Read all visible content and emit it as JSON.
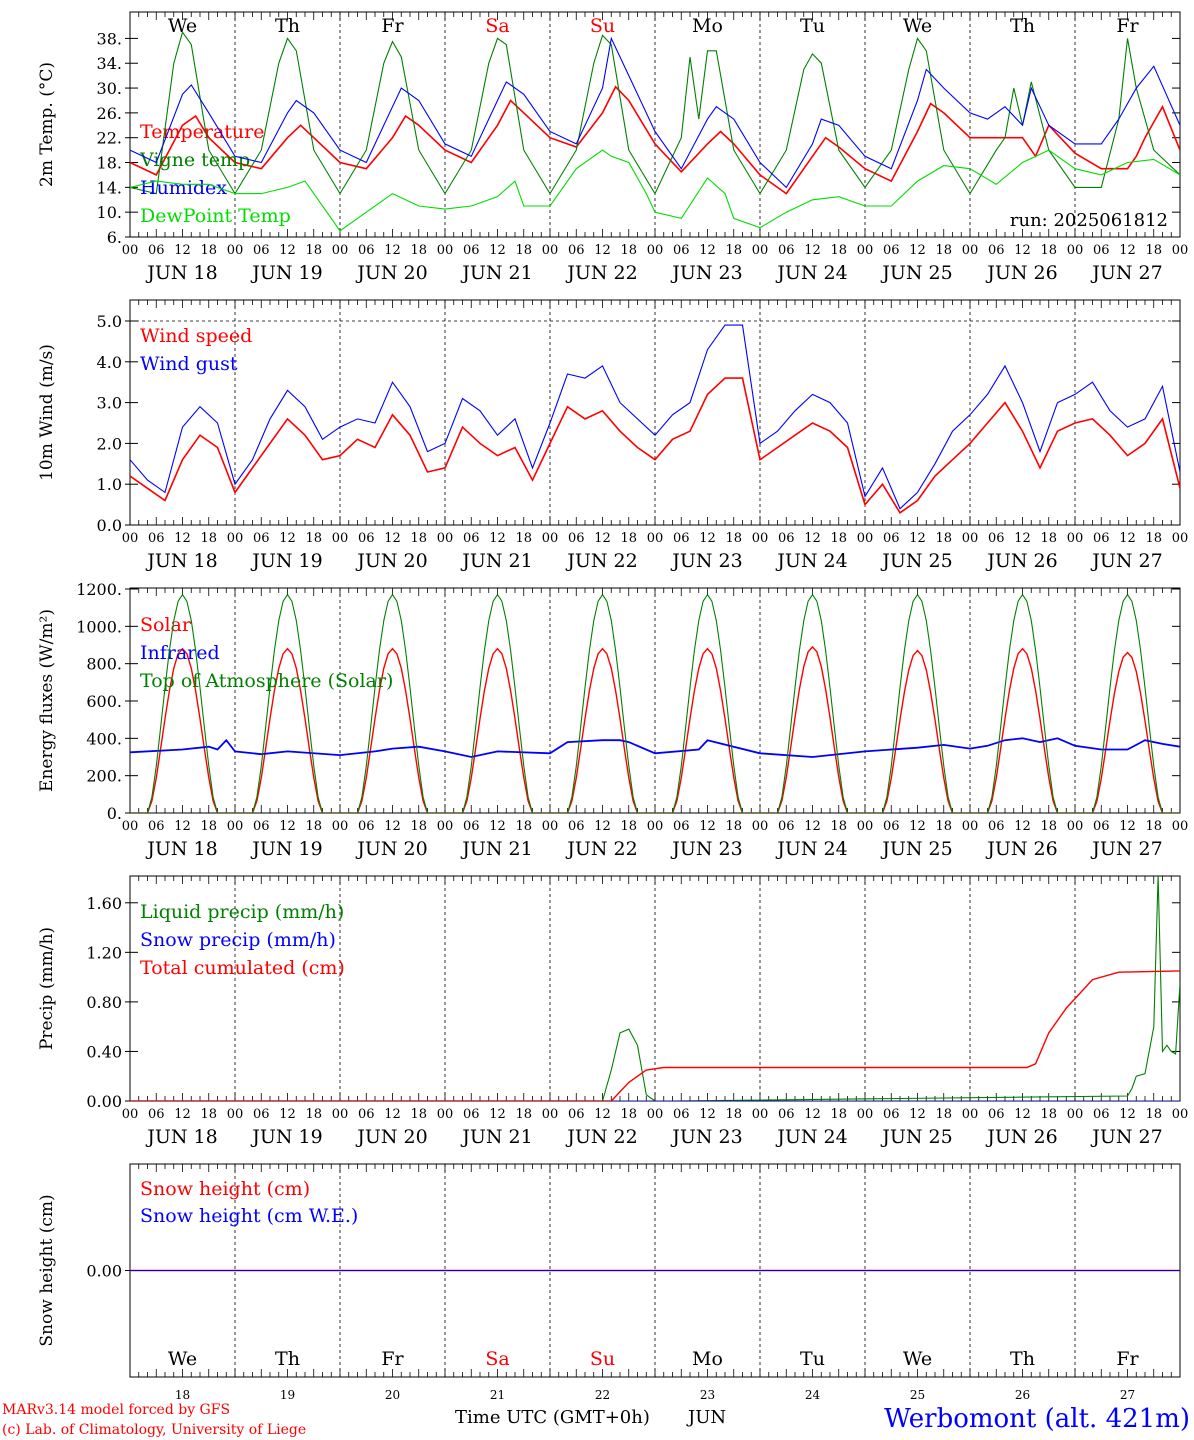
{
  "location": "Werbomont (alt. 421m)",
  "run_label": "run: 2025061812",
  "credits": [
    "MARv3.14 model forced by GFS",
    "(c) Lab. of Climatology, University of Liege"
  ],
  "xaxis_label": "Time UTC (GMT+0h)",
  "month_label": "JUN",
  "hour_ticks": [
    "00",
    "06",
    "12",
    "18"
  ],
  "final_tick": "00",
  "date_labels": [
    "JUN 18",
    "JUN 19",
    "JUN 20",
    "JUN 21",
    "JUN 22",
    "JUN 23",
    "JUN 24",
    "JUN 25",
    "JUN 26",
    "JUN 27"
  ],
  "day_numbers": [
    "18",
    "19",
    "20",
    "21",
    "22",
    "23",
    "24",
    "25",
    "26",
    "27"
  ],
  "weekdays": [
    "We",
    "Th",
    "Fr",
    "Sa",
    "Su",
    "Mo",
    "Tu",
    "We",
    "Th",
    "Fr"
  ],
  "weekend_color": "#ff0000",
  "colors": {
    "red": "#ff0000",
    "green": "#008000",
    "blue": "#0000ff",
    "lightgreen": "#00dd00",
    "title": "#0000ff"
  },
  "chart_data": [
    {
      "type": "line",
      "ylabel": "2m Temp. (°C)",
      "ylim": [
        6,
        40
      ],
      "yticks": [
        "6.",
        "10.",
        "14.",
        "18.",
        "22.",
        "26.",
        "30.",
        "34.",
        "38."
      ],
      "grid": "vertical dotted day separators",
      "legend_position": "top-left",
      "x_unit": "hours since 2025-06-18 00 UTC",
      "series": [
        {
          "name": "Temperature",
          "color": "#ff0000",
          "width": 1.6,
          "x": [
            0,
            6,
            12,
            15,
            18,
            24,
            30,
            36,
            39,
            42,
            48,
            54,
            60,
            63,
            66,
            72,
            78,
            84,
            87,
            90,
            96,
            102,
            108,
            111,
            114,
            120,
            126,
            132,
            135,
            138,
            144,
            150,
            156,
            159,
            162,
            168,
            174,
            180,
            183,
            186,
            192,
            198,
            204,
            207,
            210,
            216,
            222,
            228,
            230,
            232,
            236,
            240
          ],
          "y": [
            18,
            16,
            24,
            25.5,
            22,
            18,
            17,
            22,
            24,
            22,
            18,
            17,
            22,
            25.5,
            24,
            20,
            18,
            24,
            28,
            26,
            22,
            20.5,
            26,
            30.2,
            28,
            21,
            16.5,
            21,
            23,
            21,
            16,
            13,
            19,
            22,
            20.5,
            17,
            15,
            23,
            27.5,
            26,
            22,
            22,
            22,
            19,
            24,
            19.5,
            17,
            17,
            19,
            22,
            27,
            20
          ]
        },
        {
          "name": "Vigne temp",
          "color": "#008000",
          "width": 1.1,
          "x": [
            0,
            6,
            10,
            12,
            14,
            18,
            24,
            30,
            34,
            36,
            38,
            42,
            48,
            54,
            58,
            60,
            62,
            66,
            72,
            78,
            82,
            84,
            86,
            90,
            96,
            102,
            106,
            108,
            110,
            114,
            120,
            126,
            128,
            130,
            132,
            134,
            138,
            144,
            150,
            154,
            156,
            158,
            162,
            168,
            174,
            178,
            180,
            182,
            186,
            192,
            198,
            200,
            202,
            204,
            206,
            210,
            216,
            222,
            226,
            228,
            230,
            234,
            240
          ],
          "y": [
            14,
            13,
            34,
            39,
            37,
            20,
            13,
            20,
            34,
            38,
            36,
            20,
            13,
            20,
            34,
            37.5,
            35,
            20,
            13,
            20,
            34,
            38,
            37,
            20,
            13,
            20,
            34,
            38.5,
            37,
            20,
            13,
            22,
            35,
            25,
            36,
            36,
            20,
            13,
            20,
            33,
            35.5,
            34,
            20,
            14,
            20,
            33,
            38,
            36,
            20,
            13,
            20,
            22,
            30,
            24,
            31,
            20,
            14,
            14,
            25,
            38,
            30,
            20,
            16
          ]
        },
        {
          "name": "Humidex",
          "color": "#0000ff",
          "width": 1.1,
          "x": [
            0,
            6,
            12,
            14,
            18,
            24,
            30,
            36,
            38,
            42,
            48,
            54,
            60,
            62,
            66,
            72,
            78,
            84,
            86,
            90,
            96,
            102,
            108,
            110,
            114,
            120,
            126,
            132,
            134,
            138,
            144,
            150,
            156,
            158,
            162,
            168,
            174,
            180,
            182,
            186,
            192,
            196,
            200,
            204,
            206,
            210,
            216,
            222,
            226,
            230,
            234,
            240
          ],
          "y": [
            20,
            18,
            29,
            30.5,
            26,
            19,
            18,
            26,
            28,
            26,
            20,
            18,
            27,
            30,
            28,
            21,
            19,
            28,
            31,
            29,
            23,
            21,
            30,
            38,
            32,
            23,
            17,
            25,
            27,
            25,
            18,
            14,
            21,
            25,
            24,
            19,
            17,
            28,
            33,
            30,
            26,
            25,
            27,
            24,
            30,
            24,
            21,
            21,
            25,
            30,
            33.5,
            24
          ]
        },
        {
          "name": "DewPoint Temp",
          "color": "#00dd00",
          "width": 1.1,
          "x": [
            0,
            6,
            12,
            18,
            24,
            30,
            36,
            40,
            42,
            48,
            54,
            60,
            66,
            72,
            78,
            84,
            88,
            90,
            96,
            102,
            108,
            110,
            114,
            118,
            120,
            126,
            132,
            136,
            138,
            144,
            150,
            156,
            162,
            168,
            174,
            180,
            186,
            192,
            198,
            204,
            210,
            216,
            222,
            228,
            234,
            240
          ],
          "y": [
            14,
            15,
            14.5,
            14.5,
            13,
            13,
            14,
            15,
            13,
            7,
            10,
            13,
            11,
            10.5,
            11,
            12.5,
            15,
            11,
            11,
            17,
            20,
            19,
            18,
            13,
            10,
            9,
            15.5,
            13,
            9,
            7.5,
            10,
            12,
            12.5,
            11,
            11,
            15,
            17.5,
            17,
            14.5,
            18,
            20,
            17,
            16,
            18,
            18.5,
            16
          ]
        }
      ]
    },
    {
      "type": "line",
      "ylabel": "10m Wind (m/s)",
      "ylim": [
        0,
        5
      ],
      "yticks": [
        "0.0",
        "1.0",
        "2.0",
        "3.0",
        "4.0",
        "5.0"
      ],
      "reference_line": 5.0,
      "legend_position": "top-left",
      "series": [
        {
          "name": "Wind speed",
          "color": "#ff0000",
          "width": 1.6,
          "x": [
            0,
            4,
            8,
            12,
            16,
            20,
            24,
            28,
            32,
            36,
            40,
            44,
            48,
            52,
            56,
            60,
            64,
            68,
            72,
            76,
            80,
            84,
            88,
            92,
            96,
            100,
            104,
            108,
            112,
            116,
            120,
            124,
            128,
            132,
            136,
            140,
            144,
            148,
            152,
            156,
            160,
            164,
            168,
            172,
            176,
            180,
            184,
            188,
            192,
            196,
            200,
            204,
            208,
            212,
            216,
            220,
            224,
            228,
            232,
            236,
            240
          ],
          "y": [
            1.2,
            0.9,
            0.6,
            1.6,
            2.2,
            1.9,
            0.8,
            1.4,
            2.0,
            2.6,
            2.2,
            1.6,
            1.7,
            2.1,
            1.9,
            2.7,
            2.2,
            1.3,
            1.4,
            2.4,
            2.0,
            1.7,
            1.9,
            1.1,
            2.0,
            2.9,
            2.6,
            2.8,
            2.3,
            1.9,
            1.6,
            2.1,
            2.3,
            3.2,
            3.6,
            3.6,
            1.6,
            1.9,
            2.2,
            2.5,
            2.3,
            1.9,
            0.5,
            1.0,
            0.3,
            0.6,
            1.2,
            1.6,
            2.0,
            2.5,
            3.0,
            2.3,
            1.4,
            2.3,
            2.5,
            2.6,
            2.2,
            1.7,
            2.0,
            2.6,
            0.9
          ]
        },
        {
          "name": "Wind gust",
          "color": "#0000ff",
          "width": 1.1,
          "x": [
            0,
            4,
            8,
            12,
            16,
            20,
            24,
            28,
            32,
            36,
            40,
            44,
            48,
            52,
            56,
            60,
            64,
            68,
            72,
            76,
            80,
            84,
            88,
            92,
            96,
            100,
            104,
            108,
            112,
            116,
            120,
            124,
            128,
            132,
            136,
            140,
            144,
            148,
            152,
            156,
            160,
            164,
            168,
            172,
            176,
            180,
            184,
            188,
            192,
            196,
            200,
            204,
            208,
            212,
            216,
            220,
            224,
            228,
            232,
            236,
            240
          ],
          "y": [
            1.6,
            1.1,
            0.8,
            2.4,
            2.9,
            2.5,
            1.0,
            1.6,
            2.6,
            3.3,
            2.9,
            2.1,
            2.4,
            2.6,
            2.5,
            3.5,
            2.9,
            1.8,
            2.0,
            3.1,
            2.8,
            2.2,
            2.6,
            1.4,
            2.5,
            3.7,
            3.6,
            3.9,
            3.0,
            2.6,
            2.2,
            2.7,
            3.0,
            4.3,
            4.9,
            4.9,
            2.0,
            2.3,
            2.8,
            3.2,
            3.0,
            2.5,
            0.7,
            1.4,
            0.4,
            0.8,
            1.5,
            2.3,
            2.7,
            3.2,
            3.9,
            3.0,
            1.8,
            3.0,
            3.2,
            3.5,
            2.8,
            2.4,
            2.6,
            3.4,
            1.3
          ]
        }
      ]
    },
    {
      "type": "line",
      "ylabel": "Energy fluxes (W/m²)",
      "ylim": [
        0,
        1200
      ],
      "yticks": [
        "0.",
        "200.",
        "400.",
        "600.",
        "800.",
        "1000.",
        "1200."
      ],
      "legend_position": "top-left",
      "series": [
        {
          "name": "Solar",
          "color": "#ff0000",
          "width": 1.4,
          "kind": "diurnal",
          "peaks": [
            880,
            880,
            880,
            880,
            880,
            880,
            890,
            870,
            880,
            860
          ]
        },
        {
          "name": "Infrared",
          "color": "#0000ff",
          "width": 1.8,
          "x": [
            0,
            12,
            18,
            20,
            22,
            24,
            30,
            36,
            48,
            56,
            60,
            66,
            72,
            78,
            84,
            96,
            100,
            108,
            112,
            114,
            120,
            130,
            132,
            144,
            156,
            168,
            180,
            186,
            192,
            196,
            200,
            204,
            208,
            212,
            216,
            222,
            228,
            232,
            236,
            240
          ],
          "y": [
            325,
            340,
            355,
            340,
            390,
            330,
            315,
            330,
            310,
            330,
            345,
            355,
            330,
            300,
            330,
            320,
            380,
            390,
            390,
            380,
            320,
            340,
            390,
            320,
            300,
            330,
            350,
            365,
            345,
            360,
            390,
            400,
            380,
            400,
            360,
            340,
            340,
            390,
            370,
            355
          ]
        },
        {
          "name": "Top of Atmosphere (Solar)",
          "color": "#008000",
          "width": 1.1,
          "kind": "diurnal",
          "peaks": [
            1170,
            1170,
            1170,
            1170,
            1170,
            1170,
            1170,
            1170,
            1170,
            1170
          ]
        }
      ]
    },
    {
      "type": "line",
      "ylabel": "Precip (mm/h)",
      "ylim": [
        0,
        1.8
      ],
      "yticks": [
        "0.00",
        "0.40",
        "0.80",
        "1.20",
        "1.60"
      ],
      "legend_position": "top-left",
      "series": [
        {
          "name": "Liquid precip (mm/h)",
          "color": "#008000",
          "width": 1.1,
          "x": [
            0,
            108,
            110,
            112,
            114,
            116,
            118,
            120,
            124,
            228,
            229,
            230,
            232,
            234,
            235,
            236,
            237,
            238,
            239,
            240
          ],
          "y": [
            0,
            0,
            0.25,
            0.55,
            0.58,
            0.45,
            0.05,
            0,
            0,
            0.04,
            0.1,
            0.2,
            0.22,
            0.6,
            1.82,
            0.4,
            0.45,
            0.4,
            0.38,
            0.95
          ]
        },
        {
          "name": "Snow precip (mm/h)",
          "color": "#0000ff",
          "width": 1.1,
          "x": [
            0,
            240
          ],
          "y": [
            0,
            0
          ]
        },
        {
          "name": "Total cumulated (cm)",
          "color": "#ff0000",
          "width": 1.4,
          "x": [
            0,
            110,
            114,
            118,
            122,
            205,
            207,
            210,
            214,
            220,
            226,
            240
          ],
          "y": [
            0,
            0,
            0.15,
            0.25,
            0.27,
            0.27,
            0.3,
            0.55,
            0.75,
            0.98,
            1.04,
            1.05
          ]
        }
      ]
    },
    {
      "type": "line",
      "ylabel": "Snow height (cm)",
      "ylim": [
        -1,
        1
      ],
      "yticks": [
        "0.00"
      ],
      "legend_position": "top-left",
      "series": [
        {
          "name": "Snow height (cm)",
          "color": "#ff0000",
          "width": 1.4,
          "x": [
            0,
            240
          ],
          "y": [
            0,
            0
          ]
        },
        {
          "name": "Snow height (cm W.E.)",
          "color": "#0000ff",
          "width": 1.1,
          "x": [
            0,
            240
          ],
          "y": [
            0,
            0
          ]
        }
      ]
    }
  ]
}
